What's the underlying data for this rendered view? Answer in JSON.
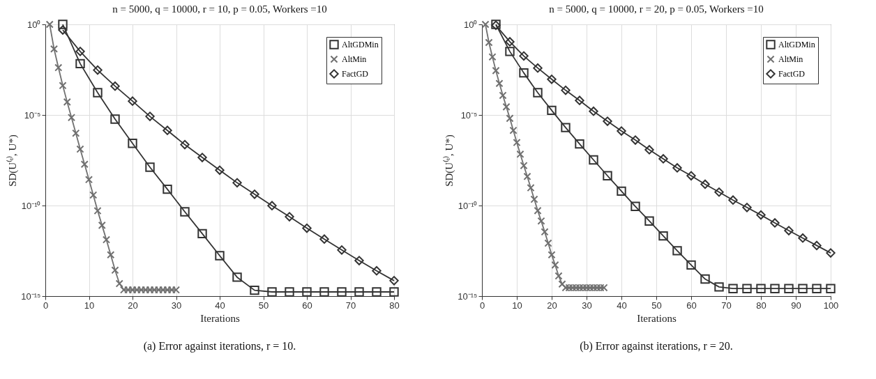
{
  "chart_data": [
    {
      "type": "line",
      "title": "n = 5000, q = 10000, r = 10, p = 0.05, Workers =10",
      "xlabel": "Iterations",
      "ylabel": "SD(U⁽ᵗ⁾, U*)",
      "annotations": [
        "(a) Error against iterations, r = 10."
      ],
      "log": "y",
      "grid": true,
      "legend": "top right",
      "xlim": [
        0,
        80
      ],
      "xticks": [
        0,
        10,
        20,
        30,
        40,
        50,
        60,
        70,
        80
      ],
      "ylim": [
        1e-15,
        1
      ],
      "yticks": [
        {
          "value": 1,
          "label": "10⁰"
        },
        {
          "value": 1e-05,
          "label": "10⁻⁵"
        },
        {
          "value": 1e-10,
          "label": "10⁻¹⁰"
        },
        {
          "value": 1e-15,
          "label": "10⁻¹⁵"
        }
      ],
      "series": [
        {
          "name": "AltGDMin",
          "color": "#333333",
          "marker": "square",
          "x": [
            4,
            8,
            12,
            16,
            20,
            24,
            28,
            32,
            36,
            40,
            44,
            48,
            52,
            56,
            60,
            64,
            68,
            72,
            76,
            80
          ],
          "values": [
            1,
            0.0068,
            0.00017,
            5.9e-06,
            2.7e-07,
            1.3e-08,
            7.9e-10,
            4.5e-11,
            2.8e-12,
            1.7e-13,
            1.1e-14,
            2.1e-15,
            1.7e-15,
            1.7e-15,
            1.7e-15,
            1.7e-15,
            1.7e-15,
            1.7e-15,
            1.7e-15,
            1.7e-15
          ]
        },
        {
          "name": "AltMin",
          "color": "#707070",
          "marker": "cross",
          "x": [
            1,
            2,
            3,
            4,
            5,
            6,
            7,
            8,
            9,
            10,
            11,
            12,
            13,
            14,
            15,
            16,
            17,
            18,
            19,
            20,
            21,
            22,
            23,
            24,
            25,
            26,
            27,
            28,
            29,
            30
          ],
          "values": [
            1,
            0.044,
            0.0041,
            0.00042,
            5.2e-05,
            7.2e-06,
            9.8e-07,
            1.3e-07,
            1.9e-08,
            2.7e-09,
            3.8e-10,
            5.1e-11,
            8.1e-12,
            1.3e-12,
            1.9e-13,
            2.7e-14,
            4.9e-15,
            2.2e-15,
            2.2e-15,
            2.2e-15,
            2.2e-15,
            2.2e-15,
            2.2e-15,
            2.2e-15,
            2.2e-15,
            2.2e-15,
            2.2e-15,
            2.2e-15,
            2.2e-15,
            2.2e-15
          ]
        },
        {
          "name": "FactGD",
          "color": "#333333",
          "marker": "diamond",
          "x": [
            4,
            8,
            12,
            16,
            20,
            24,
            28,
            32,
            36,
            40,
            44,
            48,
            52,
            56,
            60,
            64,
            68,
            72,
            76,
            80
          ],
          "values": [
            0.49,
            0.032,
            0.003,
            0.00039,
            5.8e-05,
            8.3e-06,
            1.4e-06,
            2.3e-07,
            4.5e-08,
            8.9e-09,
            1.8e-09,
            4.2e-10,
            9.8e-11,
            2.4e-11,
            5.6e-12,
            1.4e-12,
            3.5e-13,
            9.1e-14,
            2.5e-14,
            7.1e-15
          ]
        }
      ]
    },
    {
      "type": "line",
      "title": "n = 5000, q = 10000, r = 20, p = 0.05, Workers =10",
      "xlabel": "Iterations",
      "ylabel": "SD(U⁽ᵗ⁾, U*)",
      "annotations": [
        "(b) Error against iterations, r = 20."
      ],
      "log": "y",
      "grid": true,
      "legend": "top right",
      "xlim": [
        0,
        100
      ],
      "xticks": [
        0,
        10,
        20,
        30,
        40,
        50,
        60,
        70,
        80,
        90,
        100
      ],
      "ylim": [
        1e-15,
        1
      ],
      "yticks": [
        {
          "value": 1,
          "label": "10⁰"
        },
        {
          "value": 1e-05,
          "label": "10⁻⁵"
        },
        {
          "value": 1e-10,
          "label": "10⁻¹⁰"
        },
        {
          "value": 1e-15,
          "label": "10⁻¹⁵"
        }
      ],
      "series": [
        {
          "name": "AltGDMin",
          "color": "#333333",
          "marker": "square",
          "x": [
            4,
            8,
            12,
            16,
            20,
            24,
            28,
            32,
            36,
            40,
            44,
            48,
            52,
            56,
            60,
            64,
            68,
            72,
            76,
            80,
            84,
            88,
            92,
            96,
            100
          ],
          "values": [
            1,
            0.032,
            0.0021,
            0.00017,
            1.8e-05,
            2e-06,
            2.5e-07,
            3.3e-08,
            4.4e-09,
            6.2e-10,
            8.9e-11,
            1.4e-11,
            2.1e-12,
            3.2e-13,
            5.2e-14,
            8.7e-15,
            3.2e-15,
            2.6e-15,
            2.6e-15,
            2.6e-15,
            2.6e-15,
            2.6e-15,
            2.6e-15,
            2.6e-15,
            2.6e-15
          ]
        },
        {
          "name": "AltMin",
          "color": "#707070",
          "marker": "cross",
          "x": [
            1,
            2,
            3,
            4,
            5,
            6,
            7,
            8,
            9,
            10,
            11,
            12,
            13,
            14,
            15,
            16,
            17,
            18,
            19,
            20,
            21,
            22,
            23,
            24,
            25,
            26,
            27,
            28,
            29,
            30,
            31,
            32,
            33,
            34,
            35
          ],
          "values": [
            1,
            0.1,
            0.016,
            0.0028,
            0.00055,
            0.00012,
            2.8e-05,
            6.5e-06,
            1.4e-06,
            3e-07,
            6.8e-08,
            1.6e-08,
            4e-09,
            9.5e-10,
            2.2e-10,
            5.2e-11,
            1.4e-11,
            3.5e-12,
            8.3e-13,
            1.9e-13,
            5.2e-14,
            1.3e-14,
            4.6e-15,
            2.9e-15,
            2.9e-15,
            2.9e-15,
            2.9e-15,
            2.9e-15,
            2.9e-15,
            2.9e-15,
            2.9e-15,
            2.9e-15,
            2.9e-15,
            2.9e-15,
            2.9e-15
          ]
        },
        {
          "name": "FactGD",
          "color": "#333333",
          "marker": "diamond",
          "x": [
            4,
            8,
            12,
            16,
            20,
            24,
            28,
            32,
            36,
            40,
            44,
            48,
            52,
            56,
            60,
            64,
            68,
            72,
            76,
            80,
            84,
            88,
            92,
            96,
            100
          ],
          "values": [
            0.89,
            0.11,
            0.018,
            0.0039,
            0.00093,
            0.00023,
            6.3e-05,
            1.6e-05,
            4.5e-06,
            1.3e-06,
            4.1e-07,
            1.2e-07,
            3.8e-08,
            1.2e-08,
            4.4e-09,
            1.5e-09,
            5.5e-10,
            2e-10,
            7.8e-11,
            3e-11,
            1.1e-11,
            4.1e-12,
            1.6e-12,
            6.2e-13,
            2.4e-13
          ]
        }
      ]
    }
  ]
}
